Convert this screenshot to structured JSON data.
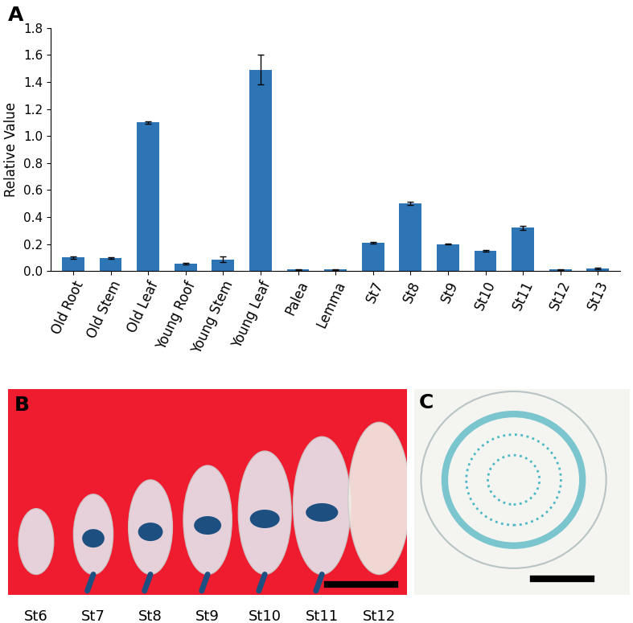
{
  "chart_data": {
    "type": "bar",
    "y_label": "Relative Value",
    "categories": [
      "Old Root",
      "Old Stem",
      "Old Leaf",
      "Young Roof",
      "Young Stem",
      "Young Leaf",
      "Palea",
      "Lemma",
      "St7",
      "St8",
      "St9",
      "St10",
      "St11",
      "St12",
      "St13"
    ],
    "values": [
      0.1,
      0.095,
      1.1,
      0.055,
      0.085,
      1.49,
      0.01,
      0.01,
      0.21,
      0.5,
      0.2,
      0.15,
      0.32,
      0.01,
      0.02
    ],
    "errors": [
      0.01,
      0.005,
      0.01,
      0.005,
      0.02,
      0.11,
      0.003,
      0.003,
      0.005,
      0.01,
      0.005,
      0.005,
      0.015,
      0.003,
      0.005
    ],
    "color": "#2e75b6",
    "ylim": [
      0,
      1.8
    ],
    "yticks": [
      {
        "value": 0,
        "label": "0.0"
      },
      0.2,
      0.4,
      0.6,
      0.8,
      {
        "value": 1,
        "label": "1.0"
      },
      1.2,
      1.4,
      1.6,
      1.8
    ],
    "grid": false
  },
  "panel_labels": [
    "A",
    "B",
    "C"
  ],
  "panel_b_stages": [
    "St6",
    "St7",
    "St8",
    "St9",
    "St10",
    "St11",
    "St12"
  ]
}
